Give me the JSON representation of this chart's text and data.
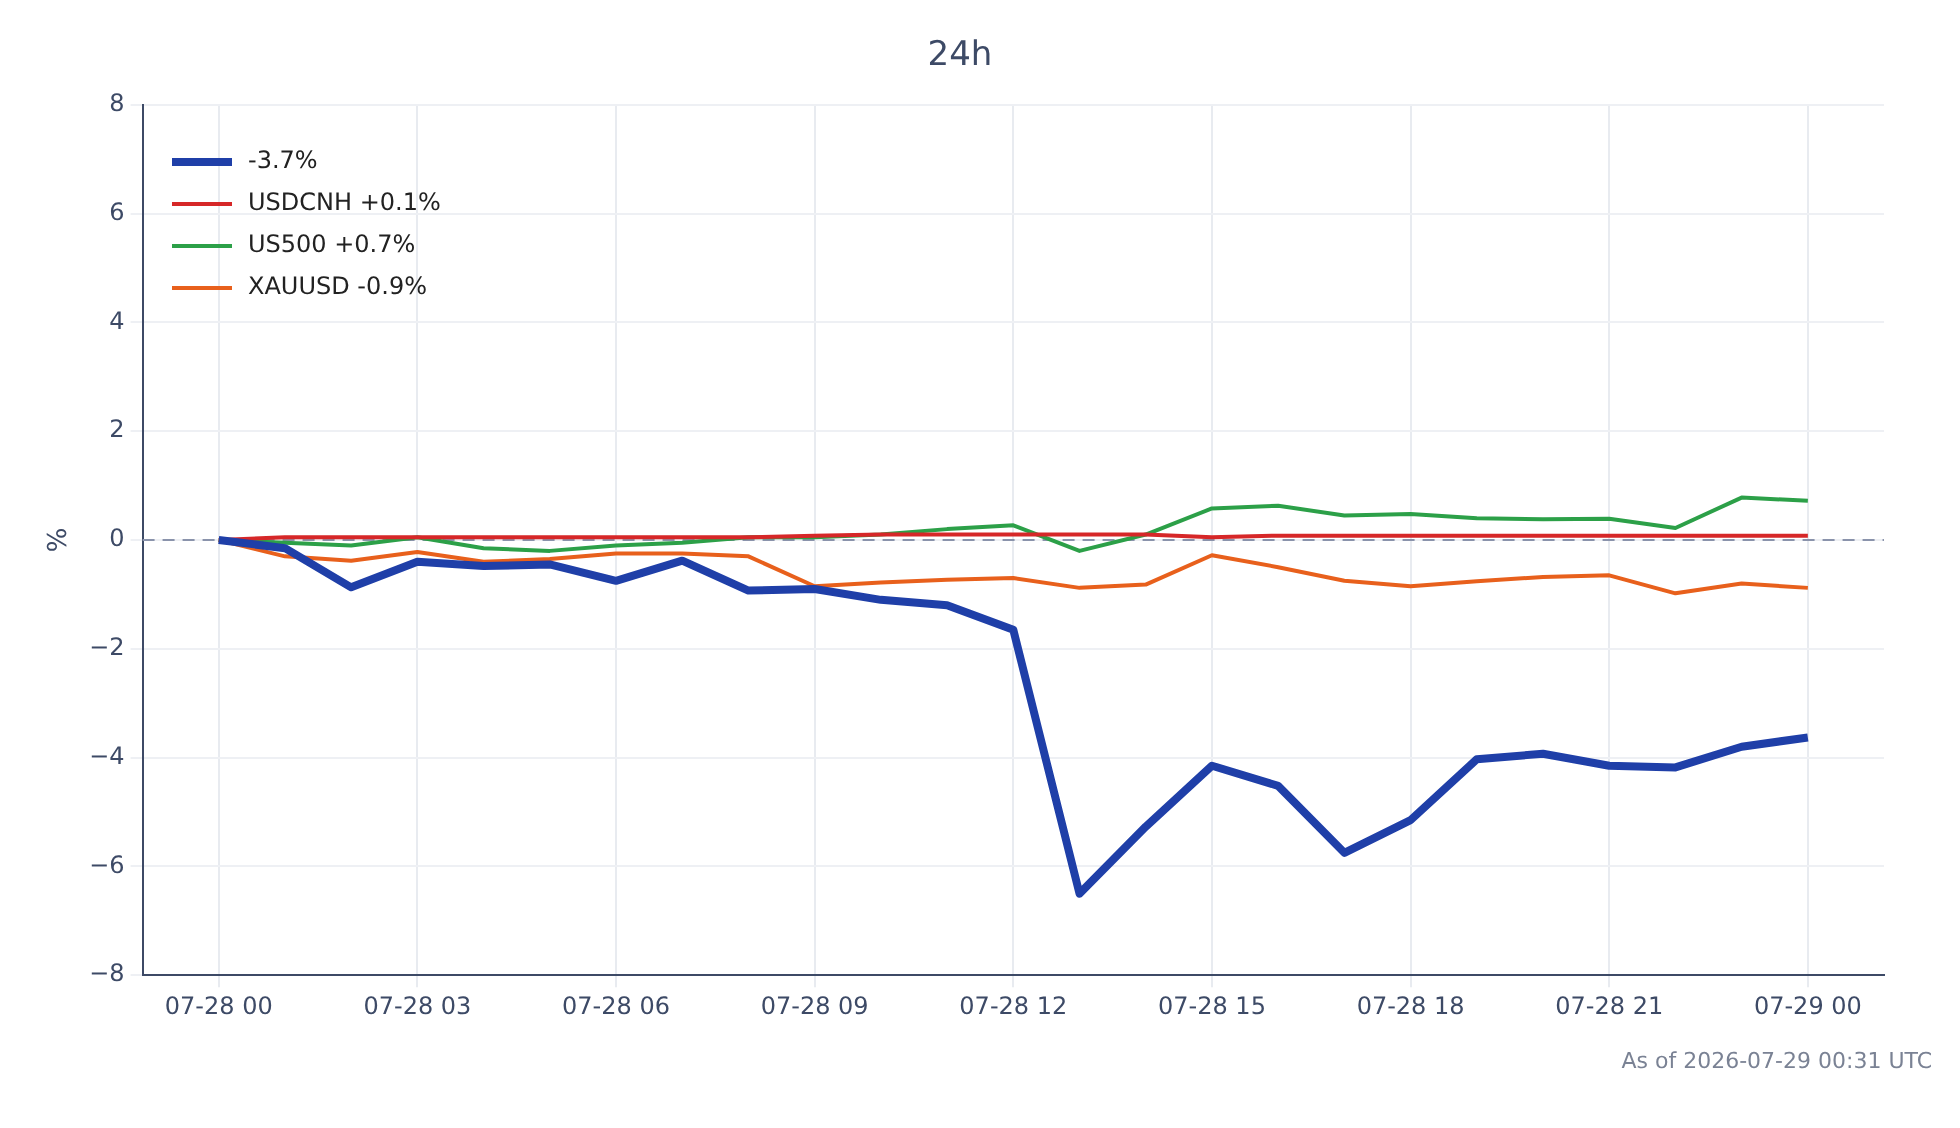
{
  "chart_data": {
    "type": "line",
    "title": "24h",
    "ylabel": "%",
    "categories": [
      "07-28 00",
      null,
      null,
      "07-28 03",
      null,
      null,
      "07-28 06",
      null,
      null,
      "07-28 09",
      null,
      null,
      "07-28 12",
      null,
      null,
      "07-28 15",
      null,
      null,
      "07-28 18",
      null,
      null,
      "07-28 21",
      null,
      null,
      "07-29 00"
    ],
    "ylim": [
      -8,
      8
    ],
    "yticks": [
      -8,
      -6,
      -4,
      -2,
      0,
      2,
      4,
      6,
      8
    ],
    "series": [
      {
        "name": "-3.7%",
        "color": "#1f3fa8",
        "values": [
          0,
          -0.15,
          -0.87,
          -0.4,
          -0.48,
          -0.45,
          -0.75,
          -0.38,
          -0.93,
          -0.9,
          -1.1,
          -1.2,
          -1.65,
          -6.5,
          -5.27,
          -4.15,
          -4.52,
          -5.75,
          -5.15,
          -4.03,
          -3.93,
          -4.15,
          -4.18,
          -3.8,
          -3.63
        ]
      },
      {
        "name": "USDCNH +0.1%",
        "color": "#d62728",
        "values": [
          0,
          0.05,
          0.05,
          0.05,
          0.05,
          0.05,
          0.05,
          0.05,
          0.05,
          0.08,
          0.1,
          0.1,
          0.1,
          0.1,
          0.1,
          0.05,
          0.08,
          0.08,
          0.08,
          0.08,
          0.08,
          0.08,
          0.08,
          0.08,
          0.08
        ]
      },
      {
        "name": "US500 +0.7%",
        "color": "#2ca048",
        "values": [
          0,
          -0.05,
          -0.1,
          0.05,
          -0.15,
          -0.2,
          -0.1,
          -0.05,
          0.05,
          0.05,
          0.1,
          0.2,
          0.27,
          -0.2,
          0.1,
          0.58,
          0.63,
          0.45,
          0.48,
          0.4,
          0.38,
          0.39,
          0.22,
          0.78,
          0.72
        ]
      },
      {
        "name": "XAUUSD -0.9%",
        "color": "#e8601c",
        "values": [
          0,
          -0.3,
          -0.38,
          -0.22,
          -0.4,
          -0.35,
          -0.25,
          -0.25,
          -0.3,
          -0.85,
          -0.78,
          -0.73,
          -0.7,
          -0.88,
          -0.82,
          -0.28,
          -0.5,
          -0.75,
          -0.85,
          -0.76,
          -0.68,
          -0.65,
          -0.98,
          -0.8,
          -0.88
        ]
      }
    ],
    "ref_lines": [
      {
        "axis": "y",
        "value": 0,
        "color": "#8a93ab",
        "line_style": "dashed"
      }
    ],
    "grid": true,
    "legend": "top left",
    "marker": "none",
    "line_style": "solid",
    "annotations": [
      "As of 2026-07-29 00:31 UTC"
    ]
  }
}
